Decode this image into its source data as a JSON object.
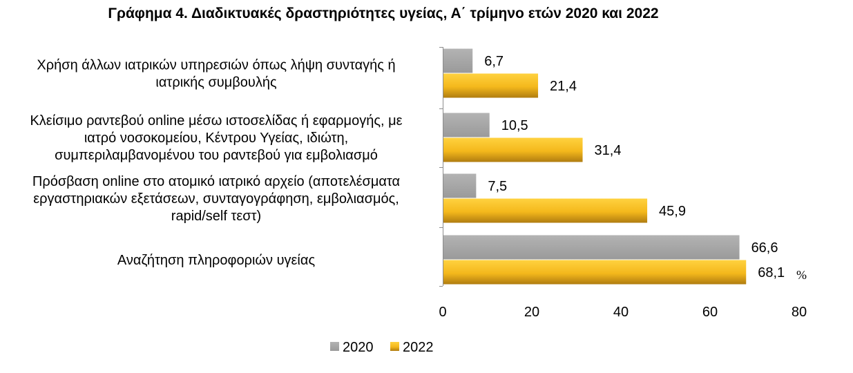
{
  "chart_data": {
    "type": "bar",
    "orientation": "horizontal",
    "title": "Γράφημα 4. Διαδικτυακές δραστηριότητες υγείας, Α΄ τρίμηνο ετών 2020 και 2022",
    "categories": [
      [
        "Χρήση άλλων ιατρικών υπηρεσιών όπως λήψη συνταγής ή",
        "ιατρικής συμβουλής"
      ],
      [
        "Κλείσιμο ραντεβού online μέσω ιστοσελίδας ή εφαρμογής, με",
        "ιατρό νοσοκομείου, Κέντρου Υγείας, ιδιώτη,",
        "συμπεριλαμβανομένου του ραντεβού για εμβολιασμό"
      ],
      [
        "Πρόσβαση online στο ατομικό ιατρικό αρχείο (αποτελέσματα",
        "εργαστηριακών εξετάσεων, συνταγογράφηση, εμβολιασμός,",
        "rapid/self τεστ)"
      ],
      [
        "Αναζήτηση πληροφοριών υγείας"
      ]
    ],
    "series": [
      {
        "name": "2020",
        "color": "#a6a6a6",
        "values": [
          6.7,
          10.5,
          7.5,
          66.6
        ],
        "labels": [
          "6,7",
          "10,5",
          "7,5",
          "66,6"
        ]
      },
      {
        "name": "2022",
        "color": "#f4b81c",
        "values": [
          21.4,
          31.4,
          45.9,
          68.1
        ],
        "labels": [
          "21,4",
          "31,4",
          "45,9",
          "68,1"
        ]
      }
    ],
    "xlim": [
      0,
      80
    ],
    "xticks": [
      "0",
      "20",
      "40",
      "60",
      "80"
    ],
    "unit": "%",
    "legend_position": "bottom",
    "grid": false
  }
}
